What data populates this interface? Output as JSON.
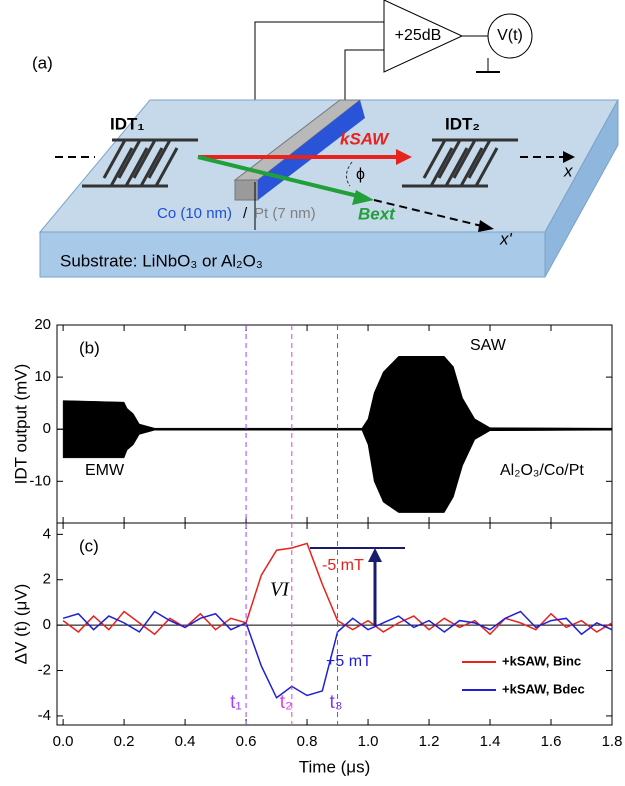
{
  "diagram": {
    "panel_label": "(a)",
    "amplifier": "+25dB",
    "meter": "V(t)",
    "idt_left": "IDT₁",
    "idt_right": "IDT₂",
    "k_saw": "kSAW",
    "phi": "ϕ",
    "axis_x": "x",
    "axis_x_prime": "x'",
    "b_ext": "Bext",
    "co_layer": "Co (10 nm)",
    "slash": "/",
    "pt_layer": "Pt (7 nm)",
    "substrate": "Substrate: LiNbO₃ or Al₂O₃"
  },
  "chart_data": [
    {
      "type": "band",
      "panel_label": "(b)",
      "ylabel": "IDT output (mV)",
      "color": "#000000",
      "x": [
        0,
        0.2,
        0.21,
        0.23,
        0.25,
        0.3,
        0.98,
        1.0,
        1.02,
        1.05,
        1.1,
        1.25,
        1.28,
        1.31,
        1.35,
        1.4,
        1.8
      ],
      "upper": [
        5.5,
        5.2,
        4,
        3,
        1,
        0.2,
        0.2,
        2,
        7,
        11,
        14,
        14,
        12,
        6,
        2,
        0.3,
        0.2
      ],
      "lower": [
        -5.5,
        -5.5,
        -4,
        -3,
        -1,
        -0.2,
        -0.2,
        -3,
        -10,
        -14,
        -16,
        -16,
        -13,
        -7,
        -2,
        -0.3,
        -0.2
      ],
      "xlim": [
        -0.02,
        1.8
      ],
      "xticks": [
        0,
        0.2,
        0.4,
        0.6,
        0.8,
        1,
        1.2,
        1.4,
        1.6,
        1.8
      ],
      "ylim": [
        -18,
        20
      ],
      "yticks": [
        -10,
        0,
        10,
        20
      ],
      "annotations": [
        "SAW",
        "EMW",
        "Al₂O₃/Co/Pt"
      ]
    },
    {
      "type": "line",
      "panel_label": "(c)",
      "ylabel": "ΔV (t) (μV)",
      "xlabel": "Time (μs)",
      "x": [
        0,
        0.05,
        0.1,
        0.15,
        0.2,
        0.25,
        0.3,
        0.35,
        0.4,
        0.45,
        0.5,
        0.55,
        0.6,
        0.65,
        0.7,
        0.75,
        0.8,
        0.85,
        0.9,
        0.95,
        1.0,
        1.05,
        1.1,
        1.15,
        1.2,
        1.25,
        1.3,
        1.35,
        1.4,
        1.45,
        1.5,
        1.55,
        1.6,
        1.65,
        1.7,
        1.75,
        1.8
      ],
      "series": [
        {
          "name": "+kSAW, Binc",
          "color": "#e8221c",
          "values": [
            0.2,
            -0.3,
            0.4,
            -0.2,
            0.6,
            0.1,
            -0.4,
            0.3,
            -0.1,
            0.5,
            -0.2,
            0.3,
            0.1,
            2.2,
            3.3,
            3.4,
            3.6,
            1.8,
            0.2,
            -0.2,
            0.2,
            -0.3,
            0.1,
            0.4,
            -0.2,
            0.3,
            -0.1,
            0.2,
            -0.4,
            0.3,
            0.1,
            -0.2,
            0.5,
            -0.1,
            0.2,
            -0.3,
            0.1
          ]
        },
        {
          "name": "+kSAW, Bdec",
          "color": "#1f1fd6",
          "values": [
            0.3,
            0.5,
            -0.2,
            0.4,
            0.1,
            -0.3,
            0.6,
            0.2,
            -0.1,
            0.3,
            0.5,
            -0.2,
            0.1,
            -1.8,
            -3.2,
            -2.7,
            -3.1,
            -2.9,
            -0.3,
            0.3,
            -0.2,
            0.1,
            0.4,
            -0.1,
            0.2,
            -0.3,
            0.2,
            0.1,
            -0.2,
            0.3,
            0.6,
            -0.1,
            0.2,
            0.3,
            -0.4,
            0.1,
            -0.2
          ]
        }
      ],
      "xlim": [
        -0.02,
        1.8
      ],
      "xticks": [
        {
          "value": 0,
          "label": "0.0"
        },
        0.2,
        0.4,
        0.6,
        0.8,
        {
          "value": 1,
          "label": "1.0"
        },
        1.2,
        1.4,
        1.6,
        1.8
      ],
      "ylim": [
        -4.4,
        4.5
      ],
      "yticks": [
        -4,
        -2,
        0,
        2,
        4
      ],
      "vlines": [
        {
          "value": 0.6,
          "label": "t₁",
          "color": "#a040ff"
        },
        {
          "value": 0.75,
          "label": "t₂",
          "color": "#e040e0"
        },
        {
          "value": 0.9,
          "label": "t₃",
          "color": "#7f3fe0"
        }
      ],
      "annotations": [
        "-5 mT",
        "+5 mT",
        "VI"
      ],
      "legend": "lower right"
    }
  ]
}
